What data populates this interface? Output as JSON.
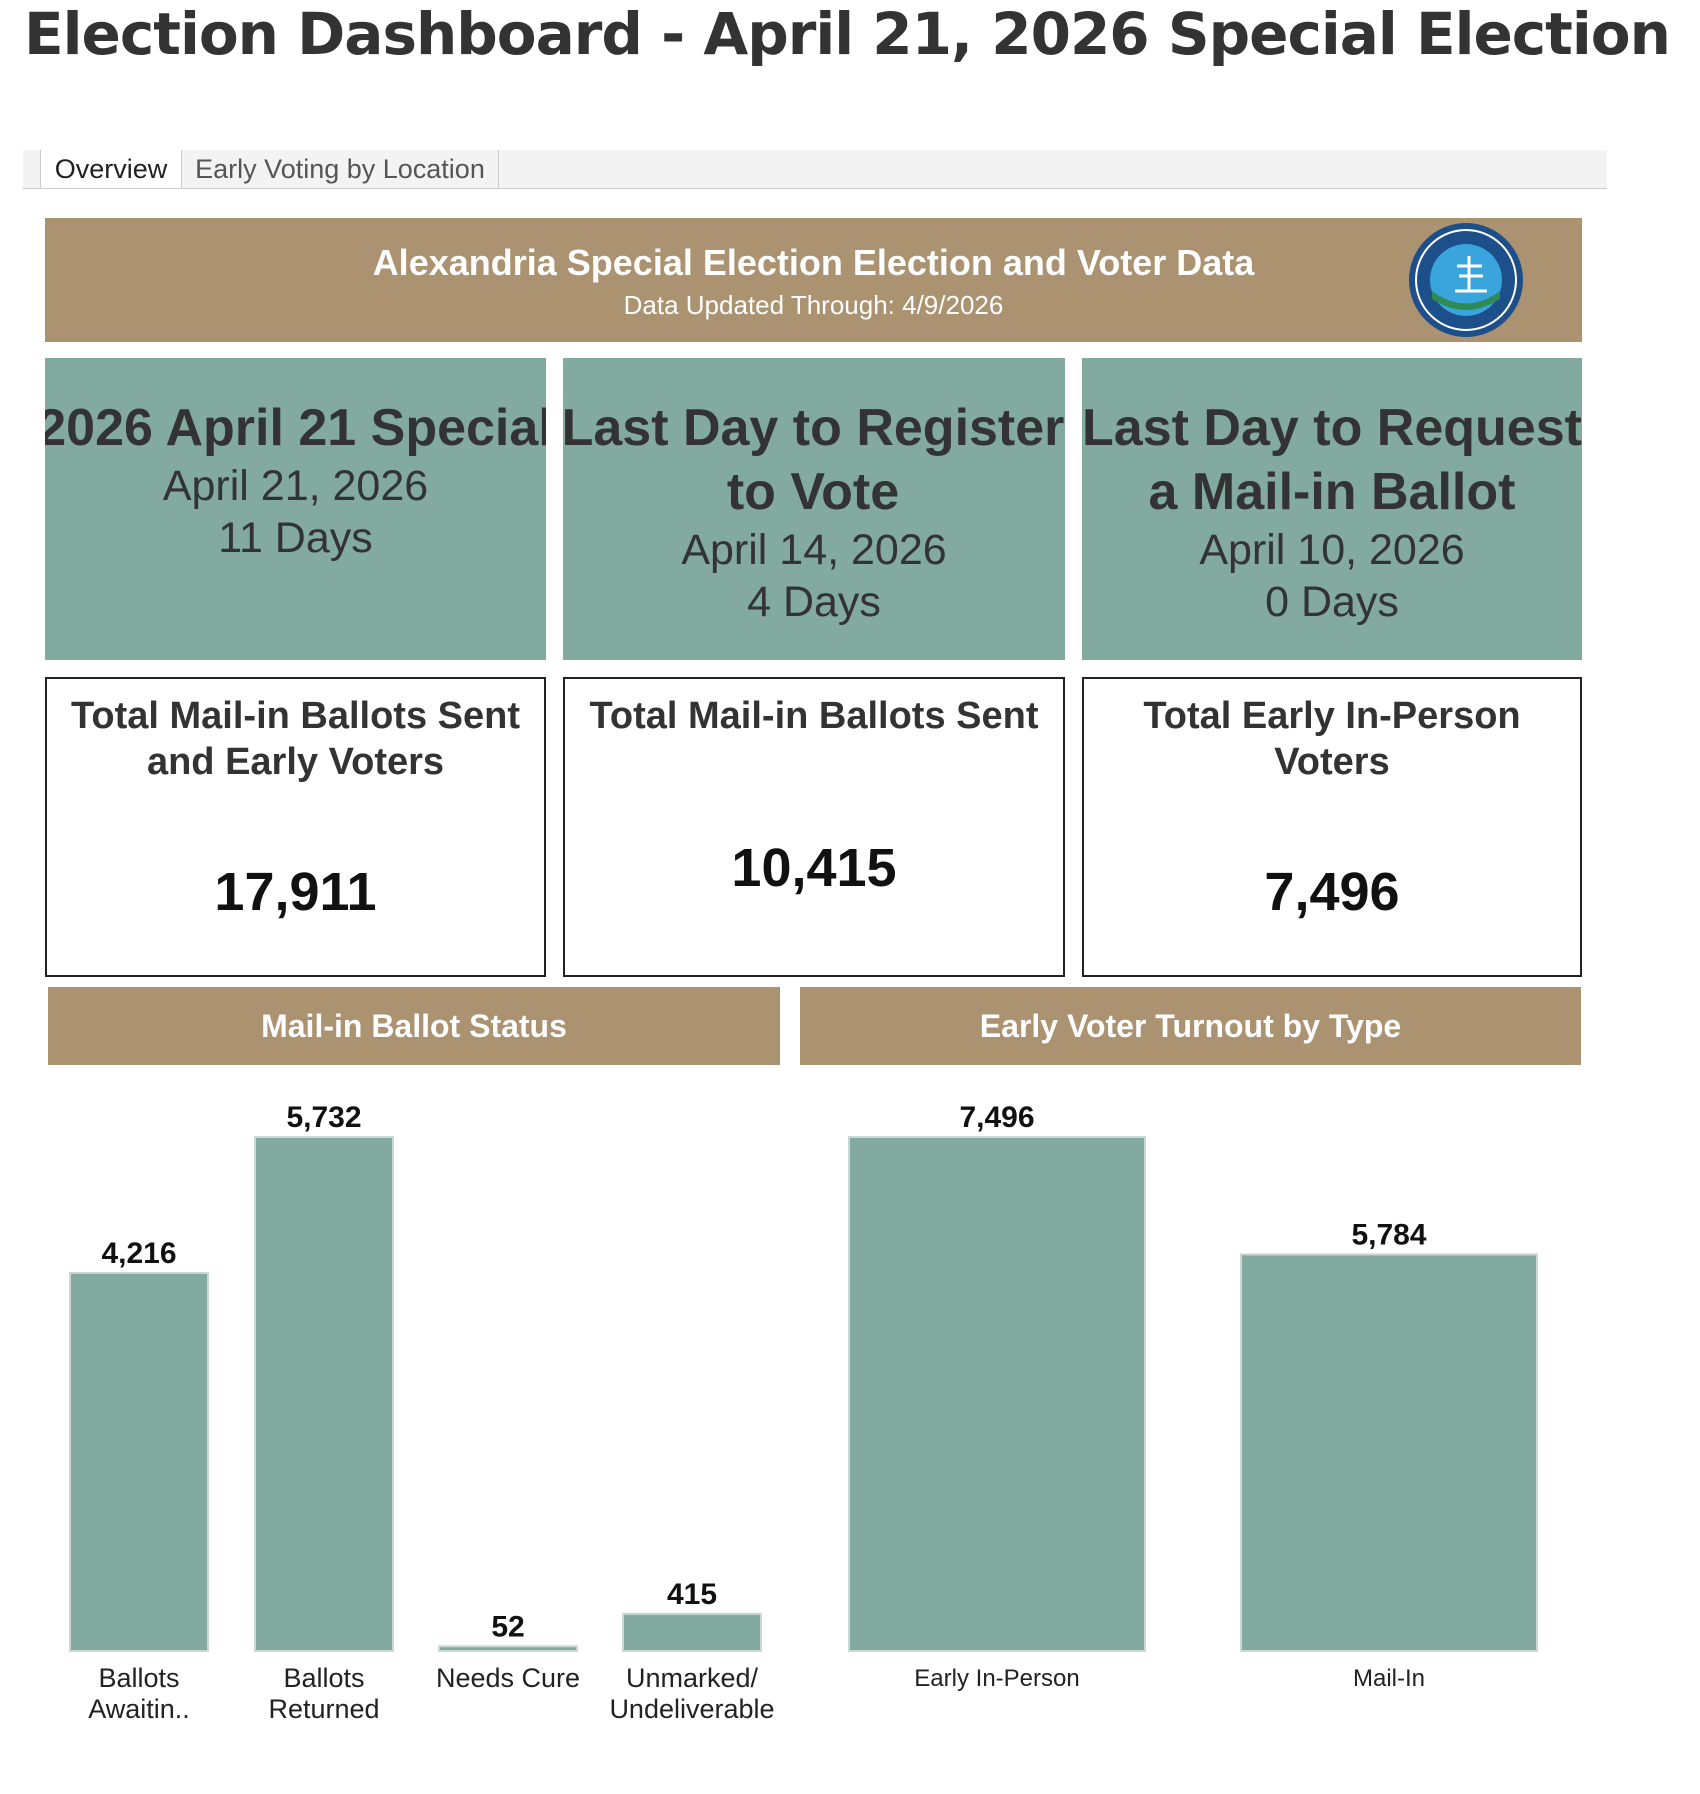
{
  "header": {
    "title": "Election Dashboard - April 21, 2026 Special Election"
  },
  "tabs": [
    "Overview",
    "Early Voting by Location"
  ],
  "banner": {
    "title": "Alexandria Special Election Election and Voter Data",
    "subtitle": "Data Updated Through: 4/9/2026"
  },
  "countdowns": [
    {
      "title": "2026 April 21 Special",
      "date": "April 21, 2026",
      "days": "11 Days"
    },
    {
      "title": "Last Day to Register to Vote",
      "date": "April 14, 2026",
      "days": "4 Days"
    },
    {
      "title": "Last Day to Request a Mail-in Ballot",
      "date": "April 10, 2026",
      "days": "0 Days"
    }
  ],
  "kpis": [
    {
      "title": "Total Mail-in Ballots Sent and Early Voters",
      "value": "17,911"
    },
    {
      "title": "Total Mail-in Ballots Sent",
      "value": "10,415"
    },
    {
      "title": "Total Early In-Person Voters",
      "value": "7,496"
    }
  ],
  "chart_data": [
    {
      "type": "bar",
      "title": "Mail-in Ballot Status",
      "categories": [
        "Ballots Awaitin..",
        "Ballots Returned",
        "Needs Cure",
        "Unmarked/ Undeliverable"
      ],
      "values": [
        4216,
        5732,
        52,
        415
      ],
      "value_labels": [
        "4,216",
        "5,732",
        "52",
        "415"
      ],
      "color": "#82aa9e"
    },
    {
      "type": "bar",
      "title": "Early Voter Turnout by Type",
      "categories": [
        "Early In-Person",
        "Mail-In"
      ],
      "values": [
        7496,
        5784
      ],
      "value_labels": [
        "7,496",
        "5,784"
      ],
      "color": "#82aa9e"
    }
  ]
}
